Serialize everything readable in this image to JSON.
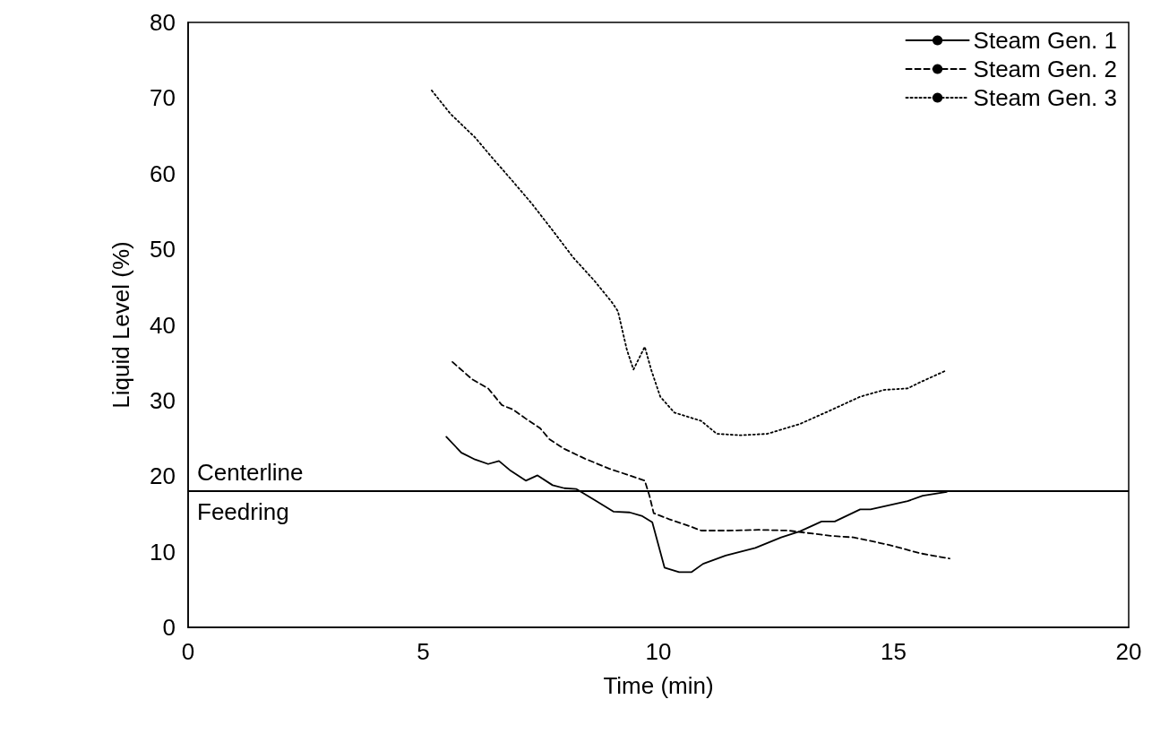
{
  "chart_data": {
    "type": "line",
    "xlabel": "Time (min)",
    "ylabel": "Liquid Level (%)",
    "xlim": [
      0,
      20
    ],
    "xticks": [
      0,
      5,
      10,
      15,
      20
    ],
    "ylim": [
      0,
      80
    ],
    "yticks": [
      0,
      10,
      20,
      30,
      40,
      50,
      60,
      70,
      80
    ],
    "grid": false,
    "legend": "top right",
    "marker": "none",
    "series": [
      {
        "name": "Steam Gen. 1",
        "color": "#000000",
        "line_style": "solid",
        "x": [
          5.49,
          5.81,
          6.1,
          6.38,
          6.61,
          6.86,
          7.18,
          7.43,
          7.75,
          8.0,
          8.25,
          8.63,
          9.05,
          9.39,
          9.66,
          9.87,
          10.13,
          10.44,
          10.7,
          10.95,
          11.43,
          12.06,
          12.61,
          13.01,
          13.47,
          13.75,
          14.29,
          14.51,
          15.3,
          15.62,
          16.13
        ],
        "values": [
          25.2,
          23.1,
          22.2,
          21.6,
          22.0,
          20.7,
          19.4,
          20.1,
          18.8,
          18.4,
          18.3,
          16.9,
          15.3,
          15.2,
          14.7,
          13.9,
          7.9,
          7.3,
          7.3,
          8.4,
          9.5,
          10.5,
          11.9,
          12.7,
          14.0,
          14.0,
          15.6,
          15.6,
          16.7,
          17.4,
          17.9
        ]
      },
      {
        "name": "Steam Gen. 2",
        "color": "#000000",
        "line_style": "dashed",
        "x": [
          5.62,
          6.04,
          6.38,
          6.67,
          6.91,
          7.18,
          7.49,
          7.68,
          8.0,
          8.44,
          8.95,
          9.52,
          9.71,
          9.81,
          9.9,
          10.23,
          10.61,
          10.91,
          11.49,
          12.13,
          12.76,
          13.66,
          14.15,
          14.91,
          15.56,
          16.19
        ],
        "values": [
          35.1,
          32.8,
          31.6,
          29.4,
          28.8,
          27.6,
          26.3,
          24.9,
          23.6,
          22.3,
          21.0,
          19.8,
          19.4,
          17.4,
          15.1,
          14.3,
          13.5,
          12.8,
          12.8,
          12.9,
          12.8,
          12.1,
          11.9,
          10.9,
          9.8,
          9.1
        ]
      },
      {
        "name": "Steam Gen. 3",
        "color": "#000000",
        "line_style": "dotted",
        "x": [
          5.18,
          5.58,
          6.1,
          6.48,
          6.86,
          7.3,
          7.75,
          8.19,
          8.63,
          9.01,
          9.14,
          9.33,
          9.47,
          9.71,
          9.85,
          10.04,
          10.34,
          10.91,
          11.24,
          11.75,
          12.32,
          13.01,
          13.66,
          14.29,
          14.8,
          15.3,
          15.56,
          16.13
        ],
        "values": [
          71.0,
          67.9,
          64.8,
          62.0,
          59.3,
          56.1,
          52.5,
          48.9,
          45.9,
          43.0,
          41.8,
          36.7,
          34.1,
          37.1,
          34.0,
          30.5,
          28.4,
          27.3,
          25.6,
          25.4,
          25.6,
          26.9,
          28.7,
          30.5,
          31.4,
          31.6,
          32.4,
          34.0
        ]
      }
    ],
    "ref_lines": [
      {
        "axis": "y",
        "value": 18,
        "label": "Centerline",
        "color": "#000000",
        "line_style": "solid"
      }
    ],
    "annotations": [
      "Feedring"
    ]
  }
}
